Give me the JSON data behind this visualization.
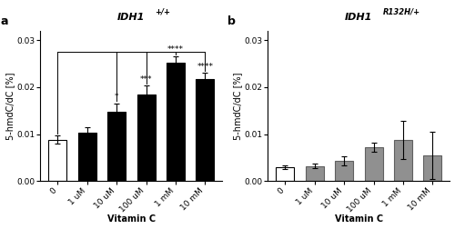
{
  "panel_a": {
    "title_base": "IDH1",
    "title_sup": "+/+",
    "categories": [
      "0",
      "1 uM",
      "10 uM",
      "100 uM",
      "1 mM",
      "10 mM"
    ],
    "values": [
      0.0088,
      0.0104,
      0.0148,
      0.0185,
      0.0252,
      0.0218
    ],
    "errors": [
      0.00085,
      0.0011,
      0.0018,
      0.0018,
      0.0014,
      0.0012
    ],
    "bar_colors": [
      "white",
      "black",
      "black",
      "black",
      "black",
      "black"
    ],
    "bar_edgecolors": [
      "black",
      "black",
      "black",
      "black",
      "black",
      "black"
    ],
    "sig_bars": [
      2,
      3,
      4,
      5
    ],
    "sig_labels": [
      "*",
      "***",
      "****",
      "****"
    ],
    "ylabel": "5-hmdC/dC [%]",
    "xlabel": "Vitamin C",
    "ylim": [
      0,
      0.032
    ],
    "yticks": [
      0.0,
      0.01,
      0.02,
      0.03
    ],
    "ytick_labels": [
      "0.00",
      "0.01",
      "0.02",
      "0.03"
    ],
    "panel_label": "a"
  },
  "panel_b": {
    "title_base": "IDH1",
    "title_sup": "R132H/+",
    "categories": [
      "0",
      "1 uM",
      "10 uM",
      "100 uM",
      "1 mM",
      "10 mM"
    ],
    "values": [
      0.003,
      0.0032,
      0.0044,
      0.0072,
      0.0088,
      0.0055
    ],
    "errors": [
      0.00045,
      0.00045,
      0.00095,
      0.00095,
      0.004,
      0.005
    ],
    "bar_colors": [
      "white",
      "#909090",
      "#909090",
      "#909090",
      "#909090",
      "#909090"
    ],
    "bar_edgecolors": [
      "black",
      "#606060",
      "#606060",
      "#606060",
      "#606060",
      "#606060"
    ],
    "sig_bars": [],
    "sig_labels": [],
    "ylabel": "5-hmdC/dC [%]",
    "xlabel": "Vitamin C",
    "ylim": [
      0,
      0.032
    ],
    "yticks": [
      0.0,
      0.01,
      0.02,
      0.03
    ],
    "ytick_labels": [
      "0.00",
      "0.01",
      "0.02",
      "0.03"
    ],
    "panel_label": "b"
  },
  "figure_bg": "white",
  "fontsize_title": 8,
  "fontsize_tick": 6.5,
  "fontsize_label": 7,
  "fontsize_panel": 9,
  "fontsize_sig": 6.5
}
